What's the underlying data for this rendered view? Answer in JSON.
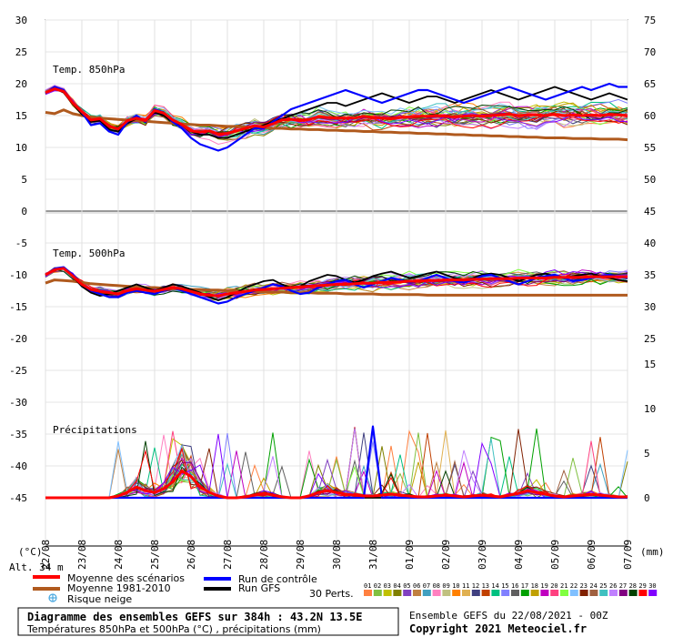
{
  "chart_data": {
    "type": "line",
    "title": "Diagramme des ensembles GEFS sur 384h : 43.2N 13.5E",
    "subtitle": "Températures 850hPa et 500hPa (°C) , précipitations (mm)",
    "run_info": "Ensemble GEFS du 22/08/2021 - 00Z",
    "copyright": "Copyright 2021 Meteociel.fr",
    "altitude": "Alt. 34 m",
    "unit_left": "(°C)",
    "unit_right": "(mm)",
    "panel_labels": {
      "t850": "Temp. 850hPa",
      "t500": "Temp. 500hPa",
      "precip": "Précipitations"
    },
    "x_labels": [
      "22/08",
      "23/08",
      "24/08",
      "25/08",
      "26/08",
      "27/08",
      "28/08",
      "29/08",
      "30/08",
      "31/08",
      "01/09",
      "02/09",
      "03/09",
      "04/09",
      "05/09",
      "06/09",
      "07/09"
    ],
    "y_left_ticks": [
      30,
      25,
      20,
      15,
      10,
      5,
      0,
      -5,
      -10,
      -15,
      -20,
      -25,
      -30,
      -35,
      -40,
      -45
    ],
    "y_right_ticks": {
      "t850": [
        75,
        70,
        65,
        60,
        55,
        50,
        45
      ],
      "t500": [
        40,
        35,
        30,
        25
      ],
      "precip": [
        15,
        10,
        5,
        0
      ]
    },
    "legend": {
      "mean": "Moyenne des scénarios",
      "clim": "Moyenne 1981-2010",
      "snow": "Risque neige",
      "control": "Run de contrôle",
      "gfs": "Run GFS",
      "perts_label": "30 Perts.",
      "perts": [
        "01",
        "02",
        "03",
        "04",
        "05",
        "06",
        "07",
        "08",
        "09",
        "10",
        "11",
        "12",
        "13",
        "14",
        "15",
        "16",
        "17",
        "18",
        "19",
        "20",
        "21",
        "22",
        "23",
        "24",
        "25",
        "26",
        "27",
        "28",
        "29",
        "30"
      ]
    },
    "colors": {
      "mean": "#ff0000",
      "clim": "#b05a1e",
      "control": "#0000ff",
      "gfs": "#000000",
      "perts": [
        "#ff8040",
        "#80c040",
        "#c0c000",
        "#808000",
        "#8040c0",
        "#c08040",
        "#40a0c0",
        "#ff80c0",
        "#c0c080",
        "#ff8000",
        "#e0b050",
        "#404080",
        "#c04000",
        "#00c080",
        "#8080ff",
        "#606060",
        "#00a000",
        "#c0a000",
        "#c000c0",
        "#ff4080",
        "#80ff40",
        "#80c0ff",
        "#802000",
        "#a06040",
        "#40c0c0",
        "#c080ff",
        "#800080",
        "#004000",
        "#ff0000",
        "#8000ff"
      ]
    },
    "series": [
      {
        "name": "Moyenne des scénarios",
        "panel": "t850",
        "values": [
          18.6,
          19.2,
          18.8,
          17.0,
          15.6,
          14.3,
          14.5,
          13.3,
          12.9,
          14.2,
          14.6,
          14.2,
          15.8,
          15.4,
          14.3,
          13.6,
          12.6,
          12.4,
          12.6,
          12.1,
          12.2,
          12.6,
          13.0,
          13.4,
          13.2,
          13.7,
          14.3,
          14.4,
          14.2,
          14.4,
          14.8,
          14.7,
          14.6,
          14.6,
          14.6,
          14.9,
          14.7,
          14.6,
          14.5,
          14.7,
          14.8,
          14.9,
          14.9,
          15.0,
          14.9,
          14.8,
          14.9,
          15.0,
          14.9,
          15.0,
          15.1,
          15.2,
          15.0,
          15.1,
          15.1,
          15.0,
          15.2,
          15.0,
          15.1,
          15.0,
          15.1,
          15.0,
          15.2,
          15.1,
          15.0
        ]
      },
      {
        "name": "Moyenne 1981-2010",
        "panel": "t850",
        "values": [
          15.5,
          15.3,
          15.9,
          15.3,
          15.0,
          14.8,
          14.6,
          14.5,
          14.4,
          14.3,
          14.2,
          14.1,
          14.0,
          13.9,
          13.8,
          13.7,
          13.6,
          13.5,
          13.5,
          13.4,
          13.3,
          13.3,
          13.2,
          13.1,
          13.1,
          13.0,
          13.0,
          12.9,
          12.9,
          12.8,
          12.8,
          12.7,
          12.7,
          12.6,
          12.6,
          12.5,
          12.5,
          12.4,
          12.4,
          12.3,
          12.3,
          12.2,
          12.2,
          12.1,
          12.1,
          12.0,
          12.0,
          11.9,
          11.9,
          11.8,
          11.8,
          11.7,
          11.7,
          11.6,
          11.6,
          11.5,
          11.5,
          11.5,
          11.4,
          11.4,
          11.4,
          11.3,
          11.3,
          11.3,
          11.2
        ]
      },
      {
        "name": "Run de contrôle",
        "panel": "t850",
        "values": [
          18.5,
          19.5,
          19.0,
          17.0,
          15.5,
          13.5,
          13.8,
          12.5,
          12.0,
          14.0,
          15.0,
          14.0,
          16.0,
          15.5,
          14.0,
          13.0,
          11.5,
          10.5,
          10.0,
          9.5,
          10.0,
          11.0,
          12.0,
          13.0,
          13.0,
          14.0,
          15.0,
          16.0,
          16.5,
          17.0,
          17.5,
          18.0,
          18.5,
          19.0,
          18.5,
          18.0,
          17.5,
          17.0,
          17.5,
          18.0,
          18.5,
          19.0,
          19.0,
          18.5,
          18.0,
          17.5,
          17.0,
          17.5,
          18.0,
          18.5,
          19.0,
          19.5,
          19.0,
          18.5,
          18.0,
          17.5,
          18.0,
          18.5,
          19.0,
          19.5,
          19.0,
          19.5,
          20.0,
          19.5,
          19.5
        ]
      },
      {
        "name": "Run GFS",
        "panel": "t850",
        "values": [
          18.5,
          19.3,
          18.6,
          16.8,
          15.2,
          14.0,
          14.2,
          12.8,
          12.5,
          13.8,
          14.5,
          14.2,
          15.5,
          15.0,
          14.0,
          13.5,
          12.5,
          12.0,
          12.0,
          11.5,
          11.5,
          12.0,
          12.5,
          13.0,
          13.5,
          14.0,
          14.5,
          15.0,
          15.5,
          16.0,
          16.5,
          17.0,
          17.0,
          16.5,
          17.0,
          17.5,
          18.0,
          18.5,
          18.0,
          17.5,
          17.0,
          17.5,
          18.0,
          18.0,
          17.5,
          17.0,
          17.5,
          18.0,
          18.5,
          19.0,
          18.5,
          18.0,
          17.5,
          18.0,
          18.5,
          19.0,
          19.5,
          19.0,
          18.5,
          18.0,
          17.5,
          18.0,
          18.5,
          18.0,
          17.5
        ]
      },
      {
        "name": "Moyenne des scénarios",
        "panel": "t500",
        "values": [
          -10.0,
          -9.2,
          -9.0,
          -10.2,
          -11.5,
          -12.3,
          -12.6,
          -12.8,
          -13.0,
          -12.5,
          -12.2,
          -12.4,
          -12.6,
          -12.3,
          -12.0,
          -12.2,
          -12.6,
          -13.0,
          -13.2,
          -13.3,
          -13.0,
          -12.8,
          -12.6,
          -12.4,
          -12.3,
          -12.2,
          -12.1,
          -12.0,
          -11.9,
          -11.8,
          -11.7,
          -11.6,
          -11.5,
          -11.5,
          -11.4,
          -11.3,
          -11.3,
          -11.2,
          -11.2,
          -11.1,
          -11.0,
          -11.0,
          -10.9,
          -10.9,
          -10.8,
          -10.8,
          -10.8,
          -10.7,
          -10.7,
          -10.6,
          -10.6,
          -10.6,
          -10.5,
          -10.5,
          -10.5,
          -10.5,
          -10.4,
          -10.4,
          -10.4,
          -10.4,
          -10.3,
          -10.3,
          -10.3,
          -10.3,
          -10.3
        ]
      },
      {
        "name": "Moyenne 1981-2010",
        "panel": "t500",
        "values": [
          -11.3,
          -10.8,
          -10.9,
          -11.0,
          -11.2,
          -11.4,
          -11.5,
          -11.6,
          -11.7,
          -11.8,
          -11.9,
          -12.0,
          -12.0,
          -12.1,
          -12.2,
          -12.2,
          -12.3,
          -12.3,
          -12.4,
          -12.4,
          -12.5,
          -12.5,
          -12.6,
          -12.6,
          -12.7,
          -12.7,
          -12.7,
          -12.8,
          -12.8,
          -12.8,
          -12.9,
          -12.9,
          -12.9,
          -13.0,
          -13.0,
          -13.0,
          -13.0,
          -13.1,
          -13.1,
          -13.1,
          -13.1,
          -13.1,
          -13.2,
          -13.2,
          -13.2,
          -13.2,
          -13.2,
          -13.2,
          -13.2,
          -13.2,
          -13.2,
          -13.2,
          -13.2,
          -13.2,
          -13.2,
          -13.2,
          -13.2,
          -13.2,
          -13.2,
          -13.2,
          -13.2,
          -13.2,
          -13.2,
          -13.2,
          -13.2
        ]
      },
      {
        "name": "Run de contrôle",
        "panel": "t500",
        "values": [
          -10.0,
          -9.0,
          -8.8,
          -10.0,
          -11.5,
          -12.5,
          -13.0,
          -13.5,
          -13.5,
          -12.8,
          -12.5,
          -12.8,
          -13.0,
          -12.5,
          -12.0,
          -12.5,
          -13.0,
          -13.5,
          -14.0,
          -14.5,
          -14.2,
          -13.5,
          -13.0,
          -12.5,
          -12.0,
          -11.5,
          -11.8,
          -12.5,
          -13.0,
          -12.8,
          -12.0,
          -11.5,
          -11.0,
          -10.8,
          -11.5,
          -12.0,
          -11.5,
          -11.0,
          -10.5,
          -10.8,
          -11.2,
          -11.0,
          -10.5,
          -10.0,
          -10.5,
          -11.0,
          -11.2,
          -10.8,
          -10.2,
          -10.0,
          -10.5,
          -11.0,
          -11.5,
          -11.0,
          -10.5,
          -10.2,
          -10.0,
          -10.5,
          -11.0,
          -10.8,
          -10.5,
          -10.2,
          -10.0,
          -10.3,
          -10.5
        ]
      },
      {
        "name": "Run GFS",
        "panel": "t500",
        "values": [
          -10.0,
          -9.3,
          -9.0,
          -10.3,
          -11.8,
          -12.8,
          -13.3,
          -13.0,
          -12.5,
          -12.0,
          -11.5,
          -12.0,
          -12.5,
          -12.0,
          -11.5,
          -11.8,
          -12.3,
          -12.8,
          -13.5,
          -14.0,
          -13.5,
          -12.8,
          -12.0,
          -11.5,
          -11.0,
          -10.8,
          -11.5,
          -12.0,
          -11.8,
          -11.0,
          -10.5,
          -10.0,
          -10.2,
          -10.8,
          -11.2,
          -10.8,
          -10.2,
          -9.8,
          -9.5,
          -10.0,
          -10.5,
          -10.2,
          -9.8,
          -9.5,
          -10.0,
          -10.5,
          -10.8,
          -10.5,
          -10.0,
          -9.8,
          -10.0,
          -10.5,
          -11.0,
          -10.5,
          -10.0,
          -9.8,
          -10.2,
          -10.5,
          -10.2,
          -10.0,
          -9.8,
          -10.2,
          -10.5,
          -10.8,
          -11.0
        ]
      },
      {
        "name": "Moyenne des scénarios",
        "panel": "precip",
        "values": [
          0,
          0,
          0,
          0,
          0,
          0,
          0,
          0,
          0.2,
          0.6,
          1.2,
          0.8,
          0.6,
          1.0,
          1.8,
          3.0,
          2.4,
          1.2,
          0.6,
          0.2,
          0,
          0,
          0.1,
          0.3,
          0.5,
          0.3,
          0.1,
          0,
          0,
          0.2,
          0.6,
          0.8,
          0.6,
          0.4,
          0.3,
          0.2,
          0.2,
          0.3,
          0.4,
          0.3,
          0.2,
          0.1,
          0.1,
          0.2,
          0.3,
          0.2,
          0.1,
          0.2,
          0.3,
          0.2,
          0.1,
          0.3,
          0.5,
          0.8,
          0.6,
          0.4,
          0.2,
          0.1,
          0.2,
          0.3,
          0.4,
          0.3,
          0.2,
          0.1,
          0.1
        ]
      },
      {
        "name": "Run de contrôle",
        "panel": "precip",
        "values": [
          0,
          0,
          0,
          0,
          0,
          0,
          0,
          0,
          0,
          0,
          0,
          0,
          0,
          0,
          0,
          0,
          0,
          0,
          0,
          0,
          0,
          0,
          0,
          0,
          0,
          0,
          0,
          0,
          0,
          0,
          0,
          0,
          0,
          0,
          0,
          0,
          8.0,
          0,
          0,
          0,
          0,
          0,
          0,
          0,
          0,
          0,
          0,
          0,
          0,
          0,
          0,
          0,
          0,
          0,
          0,
          0,
          0,
          0,
          0,
          0,
          0,
          0,
          0,
          0,
          0
        ]
      },
      {
        "name": "Run GFS",
        "panel": "precip",
        "values": [
          0,
          0,
          0,
          0,
          0,
          0,
          0,
          0,
          0,
          0,
          0,
          0,
          0,
          0,
          0,
          0,
          0,
          0,
          0,
          0,
          0,
          0,
          0,
          0,
          0,
          0,
          0,
          0,
          0,
          0,
          0,
          0,
          0,
          0,
          0,
          0,
          0,
          0,
          0,
          0,
          0,
          0,
          0,
          0,
          0,
          0,
          0,
          0,
          0,
          0,
          0,
          0,
          0,
          0,
          0,
          0,
          0,
          0,
          0,
          0,
          0,
          0,
          0,
          0,
          0
        ]
      }
    ]
  }
}
